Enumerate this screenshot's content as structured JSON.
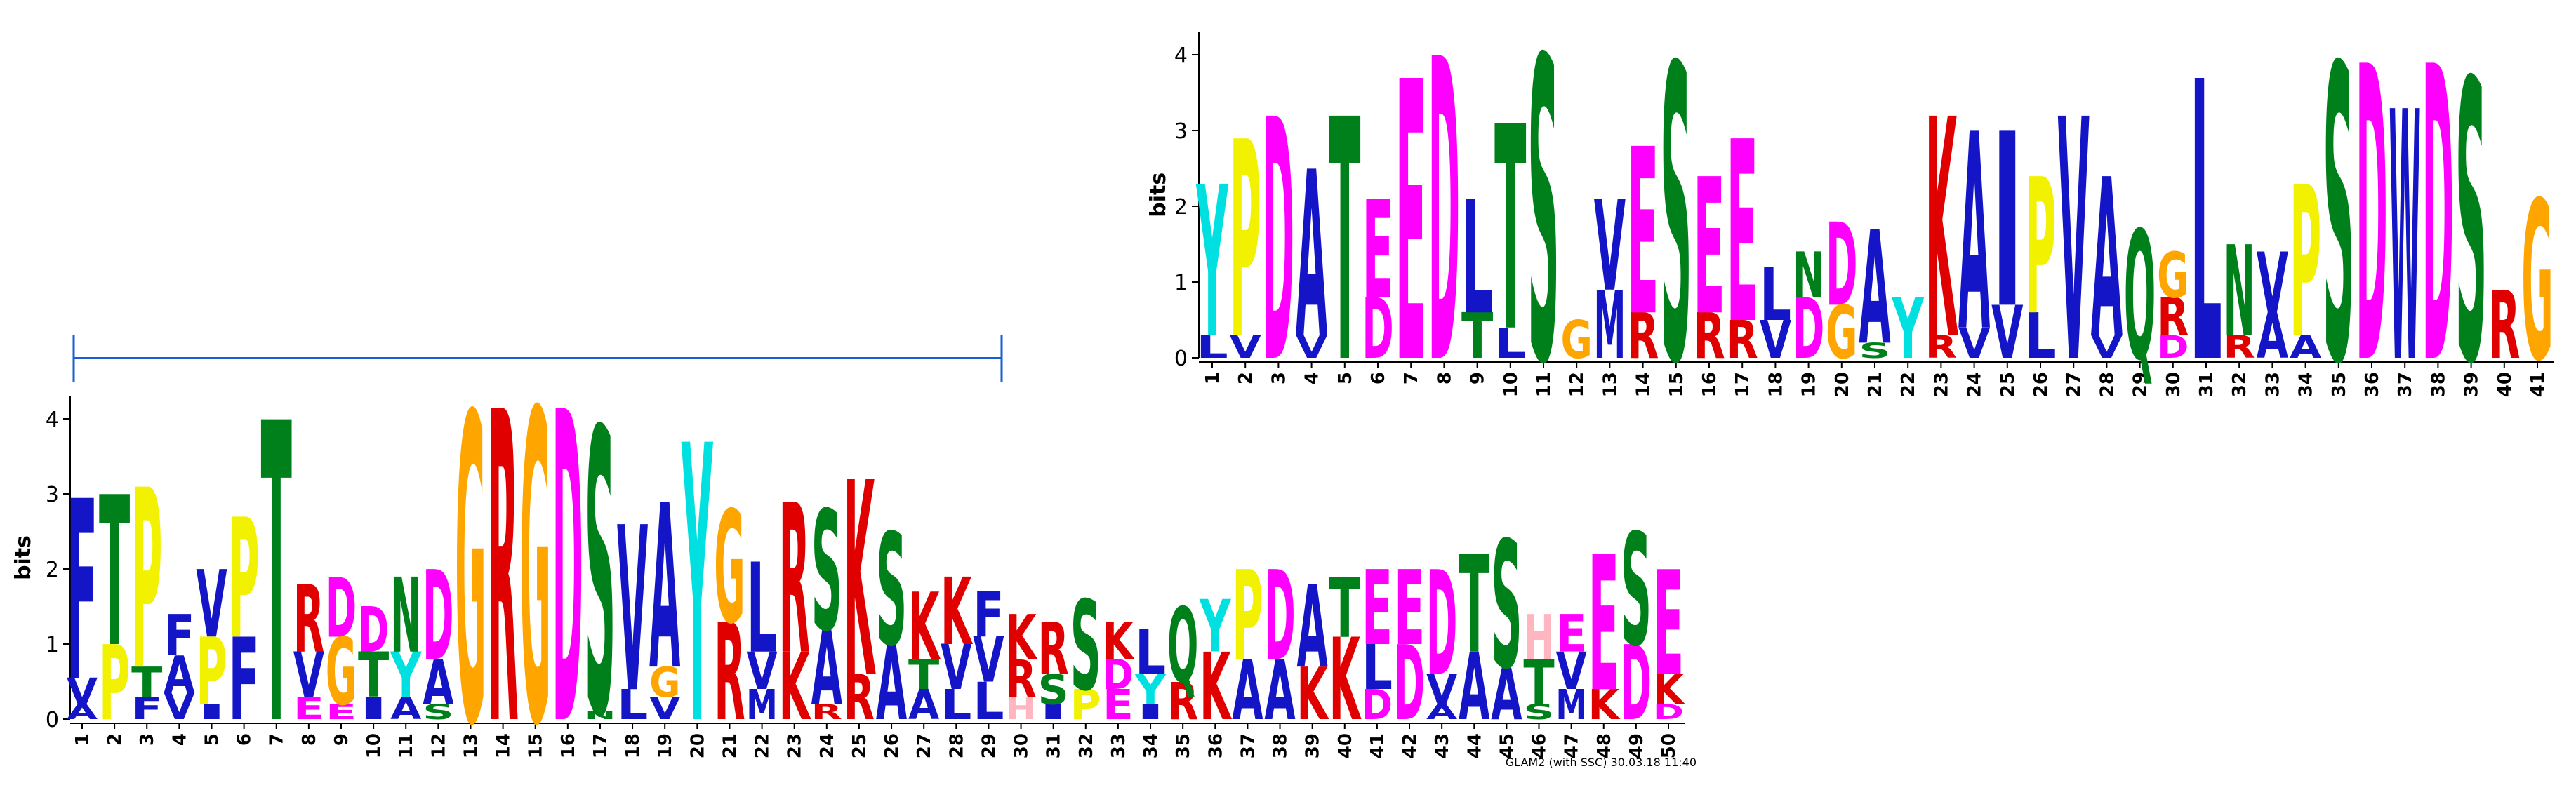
{
  "chart_data": [
    {
      "type": "logo",
      "ylabel": "bits",
      "ylim": [
        0,
        4.3
      ],
      "yticks": [
        0,
        1,
        2,
        3,
        4
      ],
      "colors": {
        "A": "#1515c8",
        "V": "#1515c8",
        "L": "#1515c8",
        "I": "#1515c8",
        "M": "#1515c8",
        "F": "#1515c8",
        "W": "#1515c8",
        "K": "#e00000",
        "R": "#e00000",
        "D": "#ff00ff",
        "E": "#ff00ff",
        "T": "#00801a",
        "S": "#00801a",
        "N": "#00801a",
        "Q": "#00801a",
        "G": "#ffa500",
        "P": "#f2f200",
        "Y": "#00e0e0",
        "H": "#ffb6c1"
      },
      "categories": [
        "1",
        "2",
        "3",
        "4",
        "5",
        "6",
        "7",
        "8",
        "9",
        "10",
        "11",
        "12",
        "13",
        "14",
        "15",
        "16",
        "17",
        "18",
        "19",
        "20",
        "21",
        "22",
        "23",
        "24",
        "25",
        "26",
        "27",
        "28",
        "29",
        "30",
        "31",
        "32",
        "33",
        "34",
        "35",
        "36",
        "37",
        "38",
        "39",
        "40",
        "41"
      ],
      "stacks": [
        {
          "letters": [
            "Y",
            "L"
          ],
          "values": [
            2.0,
            0.3
          ]
        },
        {
          "letters": [
            "P",
            "V"
          ],
          "values": [
            2.6,
            0.3
          ]
        },
        {
          "letters": [
            "D"
          ],
          "values": [
            3.2
          ]
        },
        {
          "letters": [
            "A",
            "V"
          ],
          "values": [
            2.2,
            0.3
          ]
        },
        {
          "letters": [
            "T"
          ],
          "values": [
            3.2
          ]
        },
        {
          "letters": [
            "E",
            "D"
          ],
          "values": [
            1.3,
            0.8
          ]
        },
        {
          "letters": [
            "E"
          ],
          "values": [
            3.7
          ]
        },
        {
          "letters": [
            "D"
          ],
          "values": [
            4.0
          ]
        },
        {
          "letters": [
            "L",
            "T"
          ],
          "values": [
            1.5,
            0.6
          ]
        },
        {
          "letters": [
            "T",
            "L"
          ],
          "values": [
            2.7,
            0.4
          ]
        },
        {
          "letters": [
            "S"
          ],
          "values": [
            4.0
          ]
        },
        {
          "letters": [
            "G"
          ],
          "values": [
            0.5
          ]
        },
        {
          "letters": [
            "V",
            "M"
          ],
          "values": [
            1.2,
            0.9
          ]
        },
        {
          "letters": [
            "E",
            "R"
          ],
          "values": [
            2.2,
            0.6
          ]
        },
        {
          "letters": [
            "S"
          ],
          "values": [
            3.9
          ]
        },
        {
          "letters": [
            "E",
            "R"
          ],
          "values": [
            1.8,
            0.6
          ]
        },
        {
          "letters": [
            "E",
            "R"
          ],
          "values": [
            2.4,
            0.5
          ]
        },
        {
          "letters": [
            "L",
            "V"
          ],
          "values": [
            0.7,
            0.5
          ]
        },
        {
          "letters": [
            "N",
            "D"
          ],
          "values": [
            0.6,
            0.8
          ]
        },
        {
          "letters": [
            "D",
            "G"
          ],
          "values": [
            1.1,
            0.7
          ]
        },
        {
          "letters": [
            "A",
            "S"
          ],
          "values": [
            1.5,
            0.2
          ]
        },
        {
          "letters": [
            "Y"
          ],
          "values": [
            0.8
          ]
        },
        {
          "letters": [
            "K",
            "R"
          ],
          "values": [
            2.9,
            0.3
          ]
        },
        {
          "letters": [
            "A",
            "V"
          ],
          "values": [
            2.6,
            0.4
          ]
        },
        {
          "letters": [
            "I",
            "V"
          ],
          "values": [
            2.3,
            0.7
          ]
        },
        {
          "letters": [
            "P",
            "L"
          ],
          "values": [
            1.8,
            0.6
          ]
        },
        {
          "letters": [
            "V"
          ],
          "values": [
            3.2
          ]
        },
        {
          "letters": [
            "A",
            "V"
          ],
          "values": [
            2.1,
            0.3
          ]
        },
        {
          "letters": [
            "Q"
          ],
          "values": [
            1.7
          ]
        },
        {
          "letters": [
            "G",
            "R",
            "D"
          ],
          "values": [
            0.6,
            0.5,
            0.3
          ]
        },
        {
          "letters": [
            "L"
          ],
          "values": [
            3.7
          ]
        },
        {
          "letters": [
            "N",
            "R"
          ],
          "values": [
            1.2,
            0.3
          ]
        },
        {
          "letters": [
            "V",
            "A"
          ],
          "values": [
            0.8,
            0.6
          ]
        },
        {
          "letters": [
            "P",
            "A"
          ],
          "values": [
            2.0,
            0.3
          ]
        },
        {
          "letters": [
            "S"
          ],
          "values": [
            3.9
          ]
        },
        {
          "letters": [
            "D"
          ],
          "values": [
            3.9
          ]
        },
        {
          "letters": [
            "W"
          ],
          "values": [
            3.3
          ]
        },
        {
          "letters": [
            "D"
          ],
          "values": [
            3.9
          ]
        },
        {
          "letters": [
            "S"
          ],
          "values": [
            3.7
          ]
        },
        {
          "letters": [
            "R"
          ],
          "values": [
            0.9
          ]
        },
        {
          "letters": [
            "G"
          ],
          "values": [
            2.1
          ]
        }
      ]
    },
    {
      "type": "logo",
      "ylabel": "bits",
      "ylim": [
        0,
        4.3
      ],
      "yticks": [
        0,
        1,
        2,
        3,
        4
      ],
      "note": "GLAM2 (with SSC) 30.03.18 11:40",
      "colors": {
        "A": "#1515c8",
        "V": "#1515c8",
        "L": "#1515c8",
        "I": "#1515c8",
        "M": "#1515c8",
        "F": "#1515c8",
        "W": "#1515c8",
        "K": "#e00000",
        "R": "#e00000",
        "D": "#ff00ff",
        "E": "#ff00ff",
        "T": "#00801a",
        "S": "#00801a",
        "N": "#00801a",
        "Q": "#00801a",
        "G": "#ffa500",
        "P": "#f2f200",
        "Y": "#00e0e0",
        "H": "#ffb6c1"
      },
      "categories": [
        "1",
        "2",
        "3",
        "4",
        "5",
        "6",
        "7",
        "8",
        "9",
        "10",
        "11",
        "12",
        "13",
        "14",
        "15",
        "16",
        "17",
        "18",
        "19",
        "20",
        "21",
        "22",
        "23",
        "24",
        "25",
        "26",
        "27",
        "28",
        "29",
        "30",
        "31",
        "32",
        "33",
        "34",
        "35",
        "36",
        "37",
        "38",
        "39",
        "40",
        "41",
        "42",
        "43",
        "44",
        "45",
        "46",
        "47",
        "48",
        "49",
        "50"
      ],
      "stacks": [
        {
          "letters": [
            "F",
            "V",
            "A"
          ],
          "values": [
            2.4,
            0.35,
            0.2
          ]
        },
        {
          "letters": [
            "T",
            "P"
          ],
          "values": [
            2.0,
            1.0
          ]
        },
        {
          "letters": [
            "P",
            "T",
            "F"
          ],
          "values": [
            2.4,
            0.4,
            0.3
          ]
        },
        {
          "letters": [
            "F",
            "A",
            "V"
          ],
          "values": [
            0.55,
            0.5,
            0.35
          ]
        },
        {
          "letters": [
            "V",
            "P",
            "I"
          ],
          "values": [
            0.9,
            0.9,
            0.2
          ]
        },
        {
          "letters": [
            "P",
            "F"
          ],
          "values": [
            1.6,
            1.1
          ]
        },
        {
          "letters": [
            "T"
          ],
          "values": [
            4.0
          ]
        },
        {
          "letters": [
            "R",
            "V",
            "E"
          ],
          "values": [
            0.9,
            0.6,
            0.3
          ]
        },
        {
          "letters": [
            "D",
            "G",
            "E"
          ],
          "values": [
            0.8,
            0.9,
            0.2
          ]
        },
        {
          "letters": [
            "D",
            "T",
            "I"
          ],
          "values": [
            0.6,
            0.6,
            0.3
          ]
        },
        {
          "letters": [
            "N",
            "Y",
            "A"
          ],
          "values": [
            1.0,
            0.6,
            0.3
          ]
        },
        {
          "letters": [
            "D",
            "A",
            "S"
          ],
          "values": [
            1.2,
            0.6,
            0.2
          ]
        },
        {
          "letters": [
            "G"
          ],
          "values": [
            4.1
          ]
        },
        {
          "letters": [
            "R"
          ],
          "values": [
            4.15
          ]
        },
        {
          "letters": [
            "G"
          ],
          "values": [
            4.15
          ]
        },
        {
          "letters": [
            "D"
          ],
          "values": [
            4.15
          ]
        },
        {
          "letters": [
            "S",
            "N"
          ],
          "values": [
            3.8,
            0.1
          ]
        },
        {
          "letters": [
            "V",
            "L"
          ],
          "values": [
            2.2,
            0.4
          ]
        },
        {
          "letters": [
            "A",
            "G",
            "V"
          ],
          "values": [
            2.2,
            0.4,
            0.3
          ]
        },
        {
          "letters": [
            "Y"
          ],
          "values": [
            3.7
          ]
        },
        {
          "letters": [
            "G",
            "R"
          ],
          "values": [
            1.5,
            1.3
          ]
        },
        {
          "letters": [
            "L",
            "V",
            "M"
          ],
          "values": [
            1.2,
            0.5,
            0.4
          ]
        },
        {
          "letters": [
            "R",
            "K"
          ],
          "values": [
            2.0,
            0.9
          ]
        },
        {
          "letters": [
            "S",
            "A",
            "R"
          ],
          "values": [
            1.6,
            1.0,
            0.2
          ]
        },
        {
          "letters": [
            "K",
            "R"
          ],
          "values": [
            2.6,
            0.6
          ]
        },
        {
          "letters": [
            "S",
            "A"
          ],
          "values": [
            1.5,
            1.0
          ]
        },
        {
          "letters": [
            "K",
            "T",
            "A"
          ],
          "values": [
            0.9,
            0.4,
            0.4
          ]
        },
        {
          "letters": [
            "K",
            "V",
            "L"
          ],
          "values": [
            0.9,
            0.6,
            0.4
          ]
        },
        {
          "letters": [
            "F",
            "V",
            "L"
          ],
          "values": [
            0.6,
            0.6,
            0.5
          ]
        },
        {
          "letters": [
            "K",
            "R",
            "H"
          ],
          "values": [
            0.6,
            0.5,
            0.3
          ]
        },
        {
          "letters": [
            "R",
            "S",
            "I"
          ],
          "values": [
            0.7,
            0.4,
            0.2
          ]
        },
        {
          "letters": [
            "S",
            "P"
          ],
          "values": [
            1.2,
            0.4
          ]
        },
        {
          "letters": [
            "K",
            "D",
            "E"
          ],
          "values": [
            0.5,
            0.4,
            0.4
          ]
        },
        {
          "letters": [
            "L",
            "Y",
            "I"
          ],
          "values": [
            0.6,
            0.4,
            0.2
          ]
        },
        {
          "letters": [
            "Q",
            "R"
          ],
          "values": [
            1.0,
            0.5
          ]
        },
        {
          "letters": [
            "Y",
            "K"
          ],
          "values": [
            0.7,
            0.9
          ]
        },
        {
          "letters": [
            "P",
            "A"
          ],
          "values": [
            1.2,
            0.8
          ]
        },
        {
          "letters": [
            "D",
            "A"
          ],
          "values": [
            1.2,
            0.8
          ]
        },
        {
          "letters": [
            "A",
            "K"
          ],
          "values": [
            1.1,
            0.7
          ]
        },
        {
          "letters": [
            "T",
            "K"
          ],
          "values": [
            0.8,
            1.1
          ]
        },
        {
          "letters": [
            "E",
            "L",
            "D"
          ],
          "values": [
            1.0,
            0.6,
            0.4
          ]
        },
        {
          "letters": [
            "E",
            "D"
          ],
          "values": [
            1.0,
            1.0
          ]
        },
        {
          "letters": [
            "D",
            "V",
            "A"
          ],
          "values": [
            1.4,
            0.4,
            0.2
          ]
        },
        {
          "letters": [
            "T",
            "A"
          ],
          "values": [
            1.3,
            0.9
          ]
        },
        {
          "letters": [
            "S",
            "A"
          ],
          "values": [
            1.7,
            0.7
          ]
        },
        {
          "letters": [
            "H",
            "T",
            "S"
          ],
          "values": [
            0.6,
            0.6,
            0.2
          ]
        },
        {
          "letters": [
            "E",
            "V",
            "M"
          ],
          "values": [
            0.5,
            0.5,
            0.4
          ]
        },
        {
          "letters": [
            "E",
            "K"
          ],
          "values": [
            1.8,
            0.4
          ]
        },
        {
          "letters": [
            "S",
            "D"
          ],
          "values": [
            1.5,
            1.0
          ]
        },
        {
          "letters": [
            "E",
            "K",
            "D"
          ],
          "values": [
            1.4,
            0.4,
            0.2
          ]
        }
      ]
    }
  ]
}
